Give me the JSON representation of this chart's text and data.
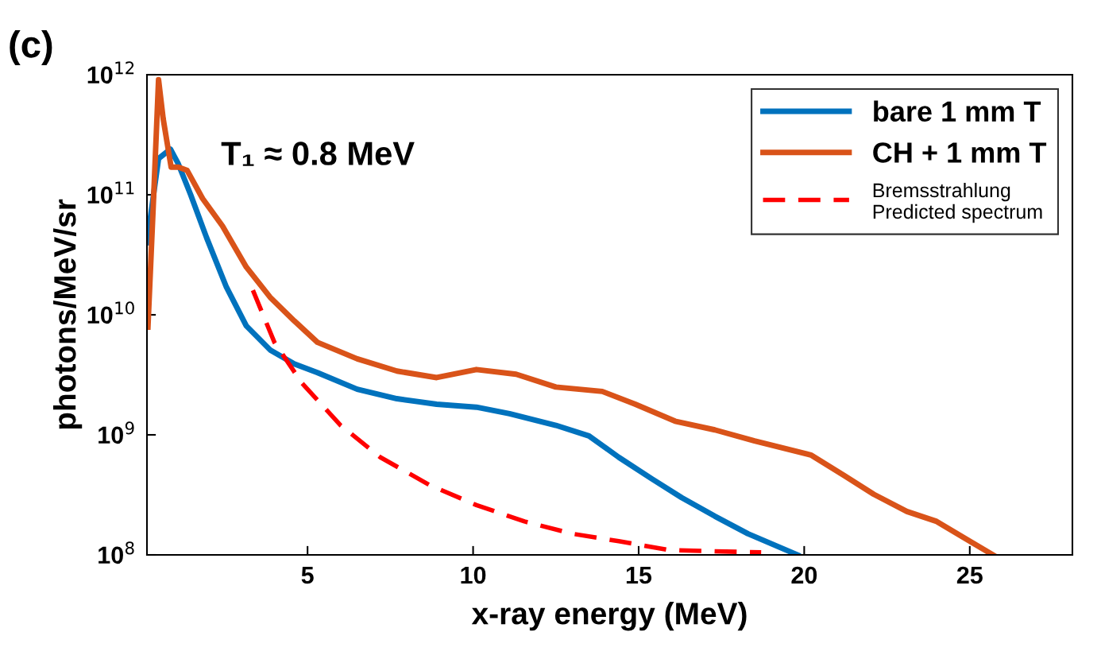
{
  "chart_data": {
    "type": "line",
    "xlabel": "x-ray energy (MeV)",
    "ylabel": "photons/MeV/sr",
    "log": "y",
    "xlim": [
      0.15,
      28.1
    ],
    "xticks": [
      5,
      10,
      15,
      20,
      25
    ],
    "ylim": [
      100000000.0,
      1000000000000.0
    ],
    "yticks": [
      {
        "value": 100000000.0,
        "label": "10$^{8}$"
      },
      {
        "value": 1000000000.0,
        "label": "10$^{9}$"
      },
      {
        "value": 10000000000.0,
        "label": "10$^{10}$"
      },
      {
        "value": 100000000000.0,
        "label": "10$^{11}$"
      },
      {
        "value": 1000000000000.0,
        "label": "10$^{12}$"
      }
    ],
    "grid": false,
    "legend": "top right",
    "marker": "none",
    "annotations": [
      "(c)",
      "T₁ ≈ 0.8 MeV"
    ],
    "series": [
      {
        "name": "bare 1 mm T",
        "color": "#0072bd",
        "line_style": "solid",
        "x": [
          0.15,
          0.5,
          0.86,
          1.1,
          1.47,
          1.95,
          2.55,
          3.15,
          3.87,
          4.6,
          5.3,
          6.5,
          7.7,
          8.9,
          10.1,
          11.1,
          12.5,
          13.5,
          14.4,
          15.4,
          16.3,
          17.3,
          18.3,
          19.8
        ],
        "values": [
          40000000000.0,
          200000000000.0,
          240000000000.0,
          180000000000.0,
          100000000000.0,
          44000000000.0,
          17000000000.0,
          8100000000.0,
          5100000000.0,
          3900000000.0,
          3300000000.0,
          2400000000.0,
          2000000000.0,
          1800000000.0,
          1700000000.0,
          1500000000.0,
          1200000000.0,
          980000000.0,
          650000000.0,
          430000000.0,
          300000000.0,
          210000000.0,
          150000000.0,
          100000000.0
        ]
      },
      {
        "name": "CH + 1 mm T",
        "color": "#d95319",
        "line_style": "solid",
        "x": [
          0.18,
          0.35,
          0.5,
          0.64,
          0.88,
          1.1,
          1.36,
          1.83,
          2.43,
          3.15,
          3.87,
          4.6,
          5.3,
          6.5,
          7.7,
          8.9,
          10.1,
          11.3,
          12.5,
          13.9,
          14.9,
          16.1,
          17.3,
          18.5,
          20.2,
          21.2,
          22.1,
          23.1,
          24.0,
          25.0,
          25.7
        ],
        "values": [
          7900000000.0,
          93000000000.0,
          910000000000.0,
          430000000000.0,
          170000000000.0,
          170000000000.0,
          160000000000.0,
          93000000000.0,
          55000000000.0,
          25000000000.0,
          14000000000.0,
          8900000000.0,
          5900000000.0,
          4300000000.0,
          3400000000.0,
          3000000000.0,
          3500000000.0,
          3200000000.0,
          2500000000.0,
          2300000000.0,
          1800000000.0,
          1300000000.0,
          1100000000.0,
          890000000.0,
          680000000.0,
          460000000.0,
          320000000.0,
          230000000.0,
          190000000.0,
          130000000.0,
          100000000.0
        ]
      },
      {
        "name": "Bremsstrahlung\nPredicted spectrum",
        "color": "#ff0000",
        "line_style": "dashed",
        "x": [
          3.35,
          4.0,
          4.83,
          6.0,
          7.2,
          8.7,
          10.1,
          11.55,
          13.0,
          14.4,
          15.9,
          17.3,
          18.7
        ],
        "values": [
          16000000000.0,
          5900000000.0,
          2700000000.0,
          1200000000.0,
          650000000.0,
          380000000.0,
          260000000.0,
          190000000.0,
          150000000.0,
          130000000.0,
          110000000.0,
          107000000.0,
          105000000.0
        ]
      }
    ]
  }
}
